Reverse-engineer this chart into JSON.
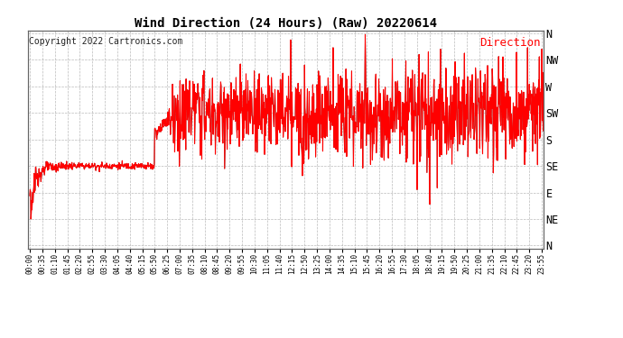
{
  "title": "Wind Direction (24 Hours) (Raw) 20220614",
  "copyright": "Copyright 2022 Cartronics.com",
  "legend_label": "Direction",
  "background_color": "#ffffff",
  "plot_bg_color": "#ffffff",
  "line_color_red": "#ff0000",
  "line_color_dark": "#333333",
  "grid_color": "#aaaaaa",
  "ytick_labels": [
    "N",
    "NW",
    "W",
    "SW",
    "S",
    "SE",
    "E",
    "NE",
    "N"
  ],
  "ytick_values": [
    360,
    315,
    270,
    225,
    180,
    135,
    90,
    45,
    0
  ],
  "ymin": -5,
  "ymax": 365,
  "xtick_interval_minutes": 35,
  "total_minutes": 1440,
  "title_fontsize": 10,
  "copyright_fontsize": 7,
  "legend_fontsize": 9,
  "xtick_fontsize": 5.5,
  "ytick_fontsize": 8.5
}
